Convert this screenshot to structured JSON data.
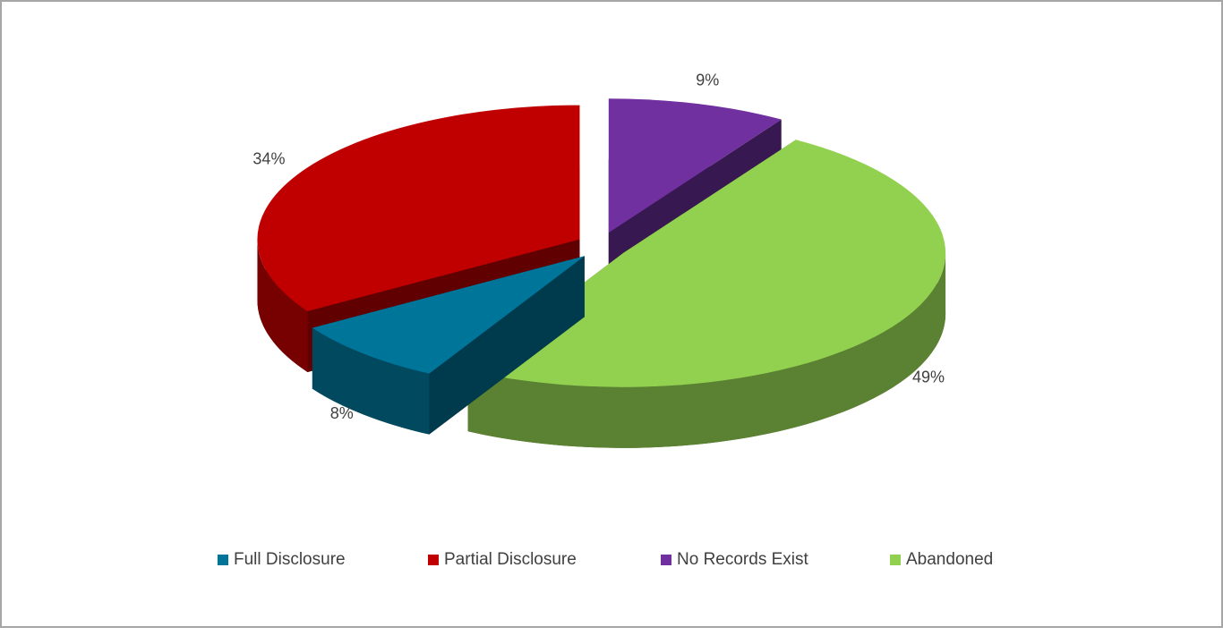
{
  "chart_data": {
    "type": "pie",
    "categories": [
      "Full Disclosure",
      "Partial Disclosure",
      "No Records Exist",
      "Abandoned"
    ],
    "values": [
      8,
      34,
      9,
      49
    ],
    "value_labels": [
      "8%",
      "34%",
      "9%",
      "49%"
    ],
    "colors": [
      "#00759a",
      "#c00000",
      "#7030a0",
      "#92d050"
    ],
    "legend": "bottom"
  }
}
